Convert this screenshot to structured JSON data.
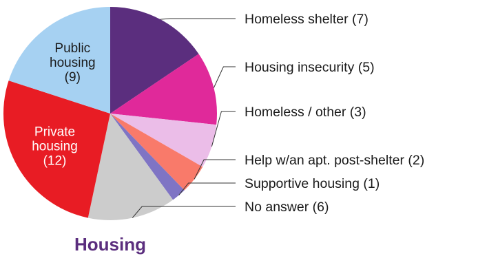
{
  "chart_data": {
    "type": "pie",
    "title": "Housing",
    "title_color": "#5b2e7e",
    "slices": [
      {
        "label": "Homeless shelter (7)",
        "value": 7,
        "color": "#5b2e7e",
        "legend": true
      },
      {
        "label": "Housing insecurity (5)",
        "value": 5,
        "color": "#e0299a",
        "legend": true
      },
      {
        "label": "Homeless / other (3)",
        "value": 3,
        "color": "#ebbde8",
        "legend": true
      },
      {
        "label": "Help w/an apt. post-shelter (2)",
        "value": 2,
        "color": "#f97a6a",
        "legend": true
      },
      {
        "label": "Supportive housing (1)",
        "value": 1,
        "color": "#7f74c4",
        "legend": true
      },
      {
        "label": "No answer (6)",
        "value": 6,
        "color": "#cccccc",
        "legend": true
      },
      {
        "label_lines": [
          "Private",
          "housing",
          "(12)"
        ],
        "value": 12,
        "color": "#e81c24",
        "legend": false,
        "label_color": "#ffffff"
      },
      {
        "label_lines": [
          "Public",
          "housing",
          "(9)"
        ],
        "value": 9,
        "color": "#a6d1f2",
        "legend": false,
        "label_color": "#1a1a1a"
      }
    ]
  }
}
